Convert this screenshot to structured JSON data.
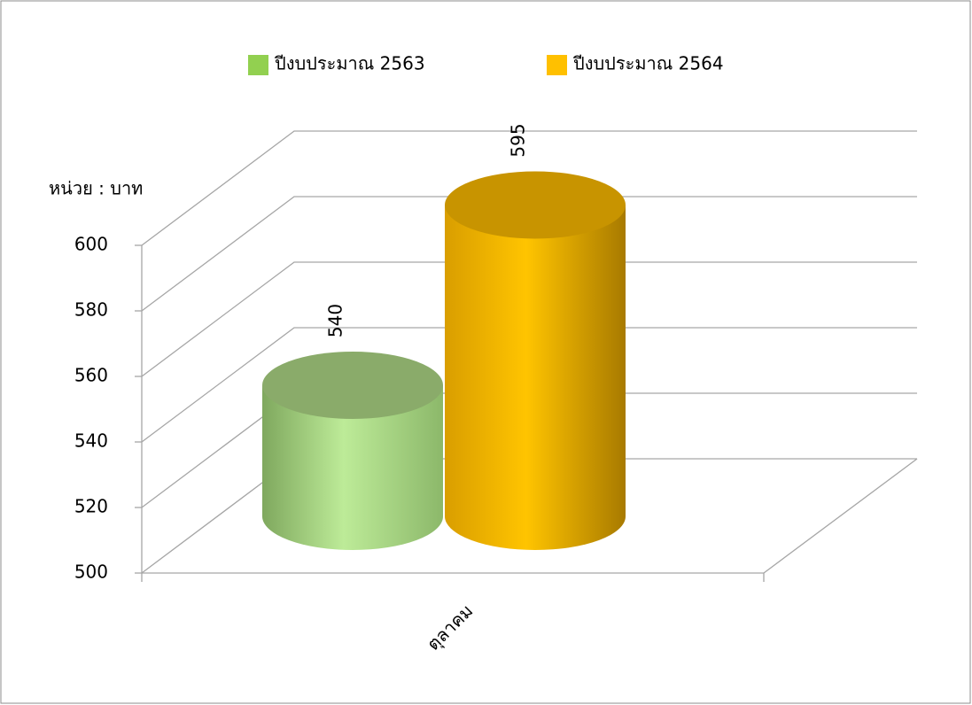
{
  "chart_data": {
    "type": "bar3d_cylinder",
    "y_axis_label": "หน่วย : บาท",
    "categories": [
      "ตุลาคม"
    ],
    "series": [
      {
        "name": "ปีงบประมาณ 2563",
        "color": "#92d050",
        "values": [
          540
        ]
      },
      {
        "name": "ปีงบประมาณ 2564",
        "color": "#ffc000",
        "values": [
          595
        ]
      }
    ],
    "ylim": [
      500,
      600
    ],
    "yticks": [
      500,
      520,
      540,
      560,
      580,
      600
    ],
    "grid": true
  }
}
